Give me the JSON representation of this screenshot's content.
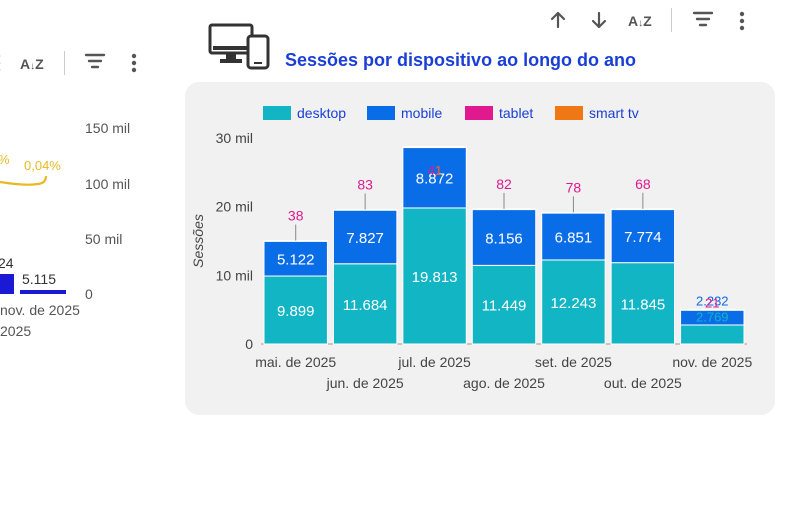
{
  "toolbar_main": {
    "sort_up": "↑",
    "sort_down": "↓",
    "sort_az": "A↓Z",
    "filter": "≡",
    "more": "⋮"
  },
  "toolbar_left": {
    "sort_az": "A↓Z",
    "filter": "≡",
    "more": "⋮"
  },
  "colors": {
    "desktop": "#12b5c4",
    "mobile": "#0a6de8",
    "tablet": "#e01a8e",
    "smart_tv": "#f07814",
    "title": "#1a3fd6",
    "left_line": "#e8b923",
    "left_bar": "#1a1ad6"
  },
  "left_chart": {
    "right_axis_ticks": [
      "150 mil",
      "100 mil",
      "50 mil",
      "0"
    ],
    "percent_labels": [
      "%",
      "0,04%"
    ],
    "bar_labels": [
      "24",
      "5.115"
    ],
    "x_labels": [
      "nov. de 2025",
      "2025"
    ]
  },
  "chart_data": {
    "type": "bar",
    "stacked": true,
    "title": "Sessões por dispositivo ao longo do ano",
    "ylabel": "Sessões",
    "ylim": [
      0,
      30000
    ],
    "y_ticks": [
      0,
      10000,
      20000,
      30000
    ],
    "y_tick_labels": [
      "0",
      "10 mil",
      "20 mil",
      "30 mil"
    ],
    "categories": [
      "mai. de 2025",
      "jun. de 2025",
      "jul. de 2025",
      "ago. de 2025",
      "set. de 2025",
      "out. de 2025",
      "nov. de 2025"
    ],
    "series": [
      {
        "name": "desktop",
        "values": [
          9899,
          11684,
          19813,
          11449,
          12243,
          11845,
          2769
        ],
        "labels": [
          "9.899",
          "11.684",
          "19.813",
          "11.449",
          "12.243",
          "11.845",
          "2.769"
        ]
      },
      {
        "name": "mobile",
        "values": [
          5122,
          7827,
          8872,
          8156,
          6851,
          7774,
          2232
        ],
        "labels": [
          "5.122",
          "7.827",
          "8.872",
          "8.156",
          "6.851",
          "7.774",
          "2.232"
        ]
      },
      {
        "name": "tablet",
        "values": [
          38,
          83,
          41,
          82,
          78,
          68,
          21
        ],
        "labels": [
          "38",
          "83",
          "41",
          "82",
          "78",
          "68",
          "21"
        ]
      },
      {
        "name": "smart tv",
        "values": [
          0,
          0,
          1,
          0,
          0,
          0,
          0
        ],
        "labels": [
          "",
          "",
          "1",
          "",
          "",
          "",
          ""
        ]
      }
    ],
    "legend": [
      "desktop",
      "mobile",
      "tablet",
      "smart tv"
    ],
    "legend_position": "top-left"
  }
}
